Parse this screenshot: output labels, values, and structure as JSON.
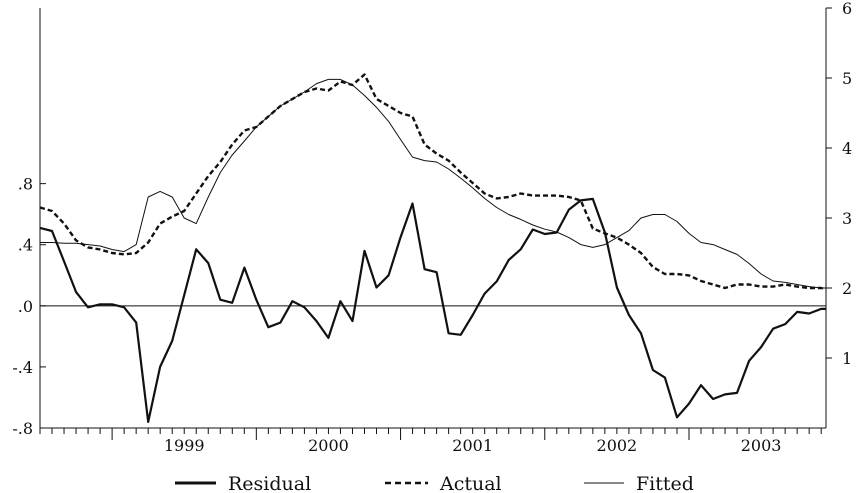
{
  "chart_data": {
    "type": "line",
    "title": "",
    "years": [
      "1999",
      "2000",
      "2001",
      "2002",
      "2003"
    ],
    "x_start": 1998.5,
    "x_end": 2003.95,
    "left_axis": {
      "ylim": [
        -0.8,
        1.95
      ],
      "ticks": [
        ".8",
        ".4",
        ".0",
        "-.4",
        "-.8"
      ],
      "tick_values": [
        0.8,
        0.4,
        0.0,
        -0.4,
        -0.8
      ]
    },
    "right_axis": {
      "ylim": [
        0,
        6
      ],
      "ticks": [
        "1",
        "2",
        "3",
        "4",
        "5",
        "6"
      ],
      "tick_values": [
        1,
        2,
        3,
        4,
        5,
        6
      ]
    },
    "series": [
      {
        "name": "Residual",
        "axis": "left",
        "style": "solid-thick",
        "x": [
          1998.5,
          1998.583,
          1998.667,
          1998.75,
          1998.833,
          1998.917,
          1999.0,
          1999.083,
          1999.167,
          1999.25,
          1999.333,
          1999.417,
          1999.5,
          1999.583,
          1999.667,
          1999.75,
          1999.833,
          1999.917,
          2000.0,
          2000.083,
          2000.167,
          2000.25,
          2000.333,
          2000.417,
          2000.5,
          2000.583,
          2000.667,
          2000.75,
          2000.833,
          2000.917,
          2001.0,
          2001.083,
          2001.167,
          2001.25,
          2001.333,
          2001.417,
          2001.5,
          2001.583,
          2001.667,
          2001.75,
          2001.833,
          2001.917,
          2002.0,
          2002.083,
          2002.167,
          2002.25,
          2002.333,
          2002.417,
          2002.5,
          2002.583,
          2002.667,
          2002.75,
          2002.833,
          2002.917,
          2003.0,
          2003.083,
          2003.167,
          2003.25,
          2003.333,
          2003.417,
          2003.5,
          2003.583,
          2003.667,
          2003.75,
          2003.833,
          2003.917,
          2003.95
        ],
        "values": [
          0.51,
          0.49,
          0.29,
          0.09,
          -0.01,
          0.01,
          0.01,
          -0.01,
          -0.11,
          -0.76,
          -0.4,
          -0.23,
          0.07,
          0.37,
          0.28,
          0.04,
          0.02,
          0.25,
          0.04,
          -0.14,
          -0.11,
          0.03,
          -0.01,
          -0.1,
          -0.21,
          0.03,
          -0.1,
          0.36,
          0.12,
          0.2,
          0.45,
          0.67,
          0.24,
          0.22,
          -0.18,
          -0.19,
          -0.06,
          0.08,
          0.16,
          0.3,
          0.37,
          0.5,
          0.47,
          0.48,
          0.63,
          0.69,
          0.7,
          0.48,
          0.12,
          -0.06,
          -0.18,
          -0.42,
          -0.47,
          -0.73,
          -0.64,
          -0.52,
          -0.61,
          -0.58,
          -0.57,
          -0.36,
          -0.27,
          -0.15,
          -0.12,
          -0.04,
          -0.05,
          -0.02,
          -0.02
        ]
      },
      {
        "name": "Actual",
        "axis": "right",
        "style": "dashed",
        "x": [
          1998.5,
          1998.583,
          1998.667,
          1998.75,
          1998.833,
          1998.917,
          1999.0,
          1999.083,
          1999.167,
          1999.25,
          1999.333,
          1999.417,
          1999.5,
          1999.583,
          1999.667,
          1999.75,
          1999.833,
          1999.917,
          2000.0,
          2000.083,
          2000.167,
          2000.25,
          2000.333,
          2000.417,
          2000.5,
          2000.583,
          2000.667,
          2000.75,
          2000.833,
          2000.917,
          2001.0,
          2001.083,
          2001.167,
          2001.25,
          2001.333,
          2001.417,
          2001.5,
          2001.583,
          2001.667,
          2001.75,
          2001.833,
          2001.917,
          2002.0,
          2002.083,
          2002.167,
          2002.25,
          2002.333,
          2002.417,
          2002.5,
          2002.583,
          2002.667,
          2002.75,
          2002.833,
          2002.917,
          2003.0,
          2003.083,
          2003.167,
          2003.25,
          2003.333,
          2003.417,
          2003.5,
          2003.583,
          2003.667,
          2003.75,
          2003.833,
          2003.917,
          2003.95
        ],
        "values": [
          3.15,
          3.1,
          2.92,
          2.68,
          2.58,
          2.55,
          2.5,
          2.48,
          2.5,
          2.65,
          2.92,
          3.02,
          3.1,
          3.35,
          3.6,
          3.8,
          4.05,
          4.25,
          4.3,
          4.45,
          4.6,
          4.7,
          4.8,
          4.85,
          4.82,
          4.95,
          4.9,
          5.05,
          4.7,
          4.6,
          4.5,
          4.45,
          4.05,
          3.92,
          3.82,
          3.65,
          3.5,
          3.35,
          3.28,
          3.3,
          3.35,
          3.32,
          3.32,
          3.32,
          3.3,
          3.25,
          2.85,
          2.78,
          2.72,
          2.62,
          2.5,
          2.3,
          2.2,
          2.2,
          2.18,
          2.1,
          2.05,
          2.0,
          2.05,
          2.05,
          2.02,
          2.02,
          2.05,
          2.02,
          2.0,
          2.0,
          1.98
        ]
      },
      {
        "name": "Fitted",
        "axis": "right",
        "style": "solid-thin",
        "x": [
          1998.5,
          1998.583,
          1998.667,
          1998.75,
          1998.833,
          1998.917,
          1999.0,
          1999.083,
          1999.167,
          1999.25,
          1999.333,
          1999.417,
          1999.5,
          1999.583,
          1999.667,
          1999.75,
          1999.833,
          1999.917,
          2000.0,
          2000.083,
          2000.167,
          2000.25,
          2000.333,
          2000.417,
          2000.5,
          2000.583,
          2000.667,
          2000.75,
          2000.833,
          2000.917,
          2001.0,
          2001.083,
          2001.167,
          2001.25,
          2001.333,
          2001.417,
          2001.5,
          2001.583,
          2001.667,
          2001.75,
          2001.833,
          2001.917,
          2002.0,
          2002.083,
          2002.167,
          2002.25,
          2002.333,
          2002.417,
          2002.5,
          2002.583,
          2002.667,
          2002.75,
          2002.833,
          2002.917,
          2003.0,
          2003.083,
          2003.167,
          2003.25,
          2003.333,
          2003.417,
          2003.5,
          2003.583,
          2003.667,
          2003.75,
          2003.833,
          2003.917,
          2003.95
        ],
        "values": [
          2.65,
          2.65,
          2.64,
          2.64,
          2.62,
          2.6,
          2.55,
          2.52,
          2.62,
          3.3,
          3.38,
          3.3,
          3.0,
          2.92,
          3.3,
          3.65,
          3.9,
          4.1,
          4.3,
          4.45,
          4.6,
          4.7,
          4.8,
          4.92,
          4.98,
          4.98,
          4.9,
          4.75,
          4.58,
          4.38,
          4.12,
          3.87,
          3.82,
          3.8,
          3.7,
          3.57,
          3.43,
          3.28,
          3.15,
          3.05,
          2.98,
          2.9,
          2.84,
          2.8,
          2.72,
          2.62,
          2.58,
          2.62,
          2.72,
          2.82,
          3.0,
          3.05,
          3.05,
          2.95,
          2.78,
          2.65,
          2.62,
          2.55,
          2.48,
          2.35,
          2.2,
          2.1,
          2.08,
          2.05,
          2.02,
          2.0,
          2.0
        ]
      }
    ],
    "legend": {
      "placement": "bottom-center",
      "entries": [
        "Residual",
        "Actual",
        "Fitted"
      ]
    },
    "grid": false
  }
}
